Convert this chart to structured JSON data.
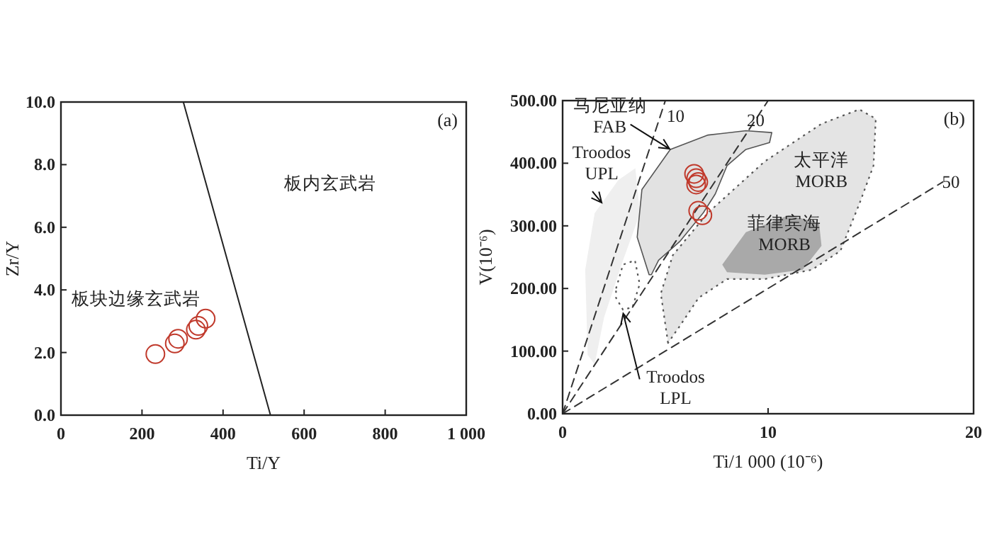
{
  "chart_data": [
    {
      "type": "scatter",
      "xlabel": "Ti/Y",
      "ylabel": "Zr/Y",
      "xlim": [
        0,
        1000
      ],
      "ylim": [
        0,
        10
      ],
      "xticks": [
        0,
        200,
        400,
        600,
        800,
        {
          "value": 1000,
          "label": "1 000"
        }
      ],
      "yticks": [
        {
          "value": 0,
          "label": "0.0"
        },
        {
          "value": 2,
          "label": "2.0"
        },
        {
          "value": 4,
          "label": "4.0"
        },
        {
          "value": 6,
          "label": "6.0"
        },
        {
          "value": 8,
          "label": "8.0"
        },
        {
          "value": 10,
          "label": "10.0"
        }
      ],
      "series": [
        {
          "type": "scatter",
          "marker": "circle",
          "color": "#c0392b",
          "x": [
            233,
            281,
            289,
            333,
            339,
            357
          ],
          "values": [
            1.95,
            2.29,
            2.44,
            2.73,
            2.85,
            3.08
          ]
        },
        {
          "type": "line",
          "color": "#222222",
          "line_style": "solid",
          "x": [
            302,
            517
          ],
          "values": [
            10,
            0
          ]
        }
      ],
      "annotations": [
        "(a)",
        "板内玄武岩",
        "板块边缘玄武岩"
      ]
    },
    {
      "type": "scatter",
      "xlabel": "Ti/1 000 (10⁻⁶)",
      "ylabel": "V(10⁻⁶)",
      "xlim": [
        0,
        20
      ],
      "ylim": [
        0,
        500
      ],
      "xticks": [
        0,
        10,
        20
      ],
      "yticks": [
        {
          "value": 0,
          "label": "0.00"
        },
        {
          "value": 100,
          "label": "100.00"
        },
        {
          "value": 200,
          "label": "200.00"
        },
        {
          "value": 300,
          "label": "300.00"
        },
        {
          "value": 400,
          "label": "400.00"
        },
        {
          "value": 500,
          "label": "500.00"
        }
      ],
      "series": [
        {
          "type": "area",
          "color": "#efefef",
          "x": [
            1.22,
            1.1,
            1.56,
            2.71,
            3.54,
            3.77,
            2.94,
            2.02,
            1.56
          ],
          "values": [
            94,
            230,
            320,
            373,
            392,
            320,
            245,
            154,
            79
          ]
        },
        {
          "type": "area",
          "color": "#e4e4e4",
          "line_style": "dotted",
          "x": [
            5.13,
            4.78,
            5.36,
            7.08,
            9.84,
            12.6,
            14.44,
            15.24,
            15.13,
            14.44,
            13.52,
            12.14,
            9.84,
            8.0,
            6.62,
            5.7
          ],
          "values": [
            113,
            192,
            253,
            321,
            403,
            463,
            486,
            471,
            396,
            335,
            260,
            230,
            215,
            215,
            185,
            140
          ]
        },
        {
          "type": "area",
          "color": "#a9a9a9",
          "x": [
            7.77,
            8.92,
            11.0,
            12.48,
            12.6,
            11.68,
            9.84,
            8.0
          ],
          "values": [
            238,
            290,
            317,
            305,
            268,
            230,
            222,
            226
          ]
        },
        {
          "type": "area",
          "color": "#e2e2e2",
          "line_style": "solid",
          "x": [
            4.21,
            3.63,
            3.86,
            5.24,
            7.08,
            8.92,
            10.18,
            10.07,
            8.92,
            8.0,
            7.43,
            6.85,
            5.7,
            4.67,
            4.32
          ],
          "values": [
            222,
            282,
            358,
            422,
            445,
            452,
            449,
            433,
            422,
            396,
            351,
            321,
            275,
            245,
            222
          ]
        },
        {
          "type": "area",
          "color": "#ffffff",
          "line_style": "dotted",
          "x": [
            2.6,
            2.94,
            3.52,
            3.75,
            3.4,
            2.94,
            2.6
          ],
          "values": [
            200,
            238,
            245,
            207,
            170,
            166,
            185
          ]
        },
        {
          "type": "line",
          "color": "#333333",
          "line_style": "dashed",
          "x": [
            0,
            5
          ],
          "values": [
            0,
            500
          ]
        },
        {
          "type": "line",
          "color": "#333333",
          "line_style": "dashed",
          "x": [
            0,
            10
          ],
          "values": [
            0,
            500
          ]
        },
        {
          "type": "line",
          "color": "#333333",
          "line_style": "dashed",
          "x": [
            0,
            18.5
          ],
          "values": [
            0,
            370
          ]
        },
        {
          "type": "scatter",
          "marker": "circle",
          "color": "#c0392b",
          "x": [
            6.4,
            6.5,
            6.6,
            6.5,
            6.6,
            6.8
          ],
          "values": [
            383,
            376,
            370,
            366,
            324,
            317
          ]
        }
      ],
      "annotations": [
        "(b)",
        "马尼亚纳\nFAB",
        "Troodos\nUPL",
        "太平洋\nMORB",
        "菲律宾海\nMORB",
        {
          "text": "Troodos\nLPL",
          "x": 2.95,
          "y": 160
        },
        "10",
        "20",
        "50"
      ]
    }
  ]
}
